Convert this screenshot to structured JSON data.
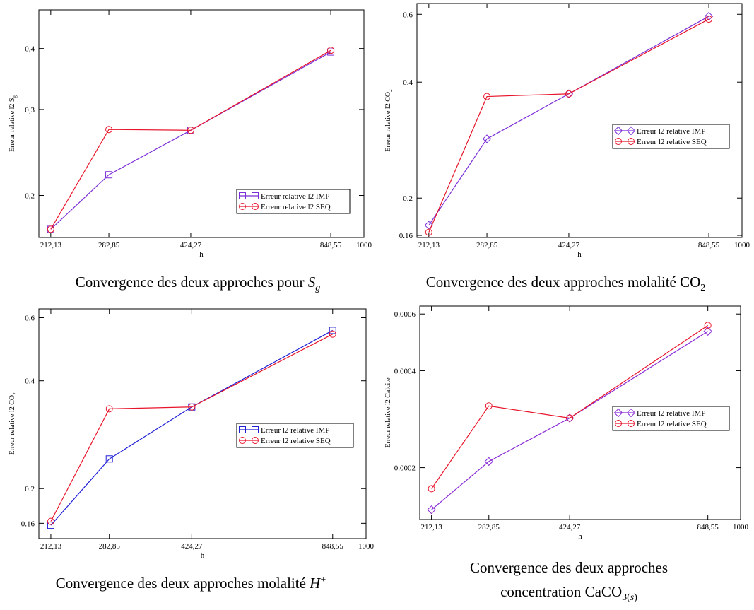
{
  "charts": [
    {
      "caption": {
        "pre": "Convergence des deux approches pour ",
        "var": "S",
        "sub": "g",
        "sup": "",
        "post": ""
      },
      "chart_data": {
        "type": "line",
        "xscale": "log",
        "yscale": "log",
        "xlabel": "h",
        "ylabel": "Erreur relative l2 S",
        "ylabel_sub": "g",
        "xlim": [
          200,
          1000
        ],
        "ylim": [
          0.164,
          0.48
        ],
        "xticks": [
          212.13,
          282.85,
          424.27,
          848.55,
          1000
        ],
        "xtick_labels": [
          "212,13",
          "282,85",
          "424,27",
          "848,55",
          "1000"
        ],
        "yticks": [
          0.2,
          0.3,
          0.4
        ],
        "ytick_labels": [
          "0,2",
          "0,3",
          "0,4"
        ],
        "x": [
          212.13,
          282.85,
          424.27,
          848.55
        ],
        "series": [
          {
            "name": "Erreur relative l2 IMP",
            "color": "#7b2fd6",
            "marker": "square",
            "values": [
              0.1705,
              0.2205,
              0.272,
              0.3935
            ]
          },
          {
            "name": "Erreur relative l2 SEQ",
            "color": "#e8152b",
            "marker": "circle",
            "values": [
              0.1705,
              0.273,
              0.272,
              0.3965
            ]
          }
        ],
        "legend": "bottom-right"
      }
    },
    {
      "caption": {
        "pre": "Convergence des deux approches molalité CO",
        "var": "",
        "sub": "2",
        "sup": "",
        "post": ""
      },
      "chart_data": {
        "type": "line",
        "xscale": "log",
        "yscale": "log",
        "xlabel": "h",
        "ylabel": "Erreur relative l2 CO",
        "ylabel_sub": "2",
        "xlim": [
          200,
          1000
        ],
        "ylim": [
          0.158,
          0.64
        ],
        "xticks": [
          212.13,
          282.85,
          424.27,
          848.55,
          1000
        ],
        "xtick_labels": [
          "212,13",
          "282,85",
          "424,27",
          "848,55",
          "1000"
        ],
        "yticks": [
          0.16,
          0.2,
          0.4,
          0.6
        ],
        "ytick_labels": [
          "0.16",
          "0.2",
          "0.4",
          "0.6"
        ],
        "x": [
          212.13,
          282.85,
          424.27,
          848.55
        ],
        "series": [
          {
            "name": "Erreur l2 relative IMP",
            "color": "#7b2fd6",
            "marker": "diamond",
            "values": [
              0.17,
              0.285,
              0.373,
              0.593
            ]
          },
          {
            "name": "Erreur l2 relative SEQ",
            "color": "#e8152b",
            "marker": "circle",
            "values": [
              0.163,
              0.367,
              0.373,
              0.583
            ]
          }
        ],
        "legend": "center-right"
      }
    },
    {
      "caption": {
        "pre": "Convergence des deux approches molalité ",
        "var": "H",
        "sub": "",
        "sup": "+",
        "post": ""
      },
      "chart_data": {
        "type": "line",
        "xscale": "log",
        "yscale": "log",
        "xlabel": "h",
        "ylabel": "Erreur relative l2 CO",
        "ylabel_sub": "2",
        "xlim": [
          200,
          1000
        ],
        "ylim": [
          0.145,
          0.635
        ],
        "xticks": [
          212.13,
          282.85,
          424.27,
          848.55,
          1000
        ],
        "xtick_labels": [
          "212,13",
          "282,85",
          "424,27",
          "848,55",
          "1000"
        ],
        "yticks": [
          0.16,
          0.2,
          0.4,
          0.6
        ],
        "ytick_labels": [
          "0.16",
          "0.2",
          "0.4",
          "0.6"
        ],
        "x": [
          212.13,
          282.85,
          424.27,
          848.55
        ],
        "series": [
          {
            "name": "Erreur l2 relative IMP",
            "color": "#1f1fd6",
            "marker": "square",
            "values": [
              0.158,
              0.242,
              0.338,
              0.553
            ]
          },
          {
            "name": "Erreur l2 relative SEQ",
            "color": "#e8152b",
            "marker": "circle",
            "values": [
              0.162,
              0.334,
              0.338,
              0.54
            ]
          }
        ],
        "legend": "center-right"
      }
    },
    {
      "caption": {
        "pre": "Convergence des deux approches",
        "line2": "concentration CaCO",
        "sub": "3(",
        "var": "s",
        "post": ")"
      },
      "chart_data": {
        "type": "line",
        "xscale": "log",
        "yscale": "log",
        "xlabel": "h",
        "ylabel": "Erreur relative l2 Calcite",
        "ylabel_sub": "",
        "xlim": [
          200,
          1000
        ],
        "ylim": [
          0.000138,
          0.000635
        ],
        "xticks": [
          212.13,
          282.85,
          424.27,
          848.55,
          1000
        ],
        "xtick_labels": [
          "212,13",
          "282,85",
          "424,27",
          "848,55",
          "1000"
        ],
        "yticks": [
          0.0002,
          0.0004,
          0.0006
        ],
        "ytick_labels": [
          "0.0002",
          "0.0004",
          "0.0006"
        ],
        "x": [
          212.13,
          282.85,
          424.27,
          848.55
        ],
        "series": [
          {
            "name": "Erreur l2 relative IMP",
            "color": "#8a2bd6",
            "marker": "diamond",
            "values": [
              0.000148,
              0.000209,
              0.000285,
              0.00053
            ]
          },
          {
            "name": "Erreur l2 relative SEQ",
            "color": "#e8152b",
            "marker": "circle",
            "values": [
              0.000172,
              0.000311,
              0.000285,
              0.000553
            ]
          }
        ],
        "legend": "center-right"
      }
    }
  ]
}
